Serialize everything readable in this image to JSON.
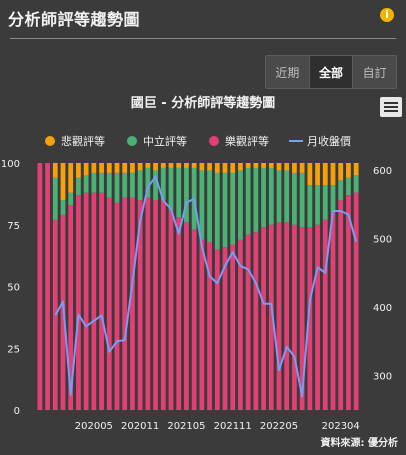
{
  "header": {
    "title": "分析師評等趨勢圖",
    "info_icon": "info-icon"
  },
  "range_buttons": [
    {
      "label": "近期",
      "active": false
    },
    {
      "label": "全部",
      "active": true
    },
    {
      "label": "自訂",
      "active": false
    }
  ],
  "menu_icon": "hamburger-menu-icon",
  "source": "資料來源: 優分析",
  "colors": {
    "bearish": "#f5a10c",
    "neutral": "#4bb174",
    "bullish": "#e23f74",
    "price": "#7a9cf5",
    "background": "#3b3b3b",
    "tick_text": "#f0f0f0"
  },
  "chart_data": {
    "type": "bar",
    "title": "國巨 - 分析師評等趨勢圖",
    "legend": [
      "悲觀評等",
      "中立評等",
      "樂觀評等",
      "月收盤價"
    ],
    "legend_position": "top",
    "x_tick_labels": [
      "202005",
      "202011",
      "202105",
      "202111",
      "202205",
      "202304"
    ],
    "x_tick_indices": [
      7,
      13,
      19,
      25,
      31,
      39
    ],
    "y_left": {
      "range": [
        0,
        100
      ],
      "ticks": [
        0,
        25,
        50,
        75,
        100
      ]
    },
    "y_right": {
      "range": [
        250,
        610
      ],
      "ticks": [
        300,
        400,
        500,
        600
      ]
    },
    "grid": false,
    "stacked_percent": true,
    "bullish": [
      100,
      100,
      77,
      79,
      83,
      87,
      88,
      88,
      88,
      86,
      84,
      86,
      86,
      85,
      86,
      85,
      85,
      81,
      78,
      76,
      73,
      69,
      68,
      65,
      66,
      67,
      69,
      71,
      72,
      74,
      75,
      76,
      76,
      75,
      74,
      74,
      75,
      77,
      80,
      85,
      87,
      88
    ],
    "neutral": [
      0,
      0,
      17,
      6,
      5,
      7,
      7,
      8,
      8,
      10,
      12,
      10,
      10,
      12,
      12,
      12,
      13,
      17,
      20,
      22,
      25,
      28,
      29,
      31,
      30,
      29,
      28,
      27,
      26,
      24,
      23,
      21,
      21,
      21,
      22,
      17,
      16,
      14,
      11,
      8,
      7,
      7
    ],
    "bearish": [
      0,
      0,
      6,
      15,
      12,
      6,
      5,
      4,
      4,
      4,
      4,
      4,
      4,
      3,
      2,
      3,
      2,
      2,
      2,
      2,
      2,
      3,
      3,
      4,
      4,
      4,
      3,
      2,
      2,
      2,
      2,
      3,
      3,
      4,
      4,
      9,
      9,
      9,
      9,
      7,
      6,
      5
    ],
    "price": [
      null,
      null,
      388,
      408,
      272,
      389,
      372,
      380,
      388,
      335,
      350,
      352,
      435,
      525,
      575,
      590,
      555,
      543,
      507,
      552,
      558,
      488,
      445,
      435,
      460,
      480,
      460,
      455,
      435,
      405,
      405,
      308,
      342,
      328,
      270,
      410,
      458,
      450,
      540,
      540,
      535,
      495
    ]
  }
}
